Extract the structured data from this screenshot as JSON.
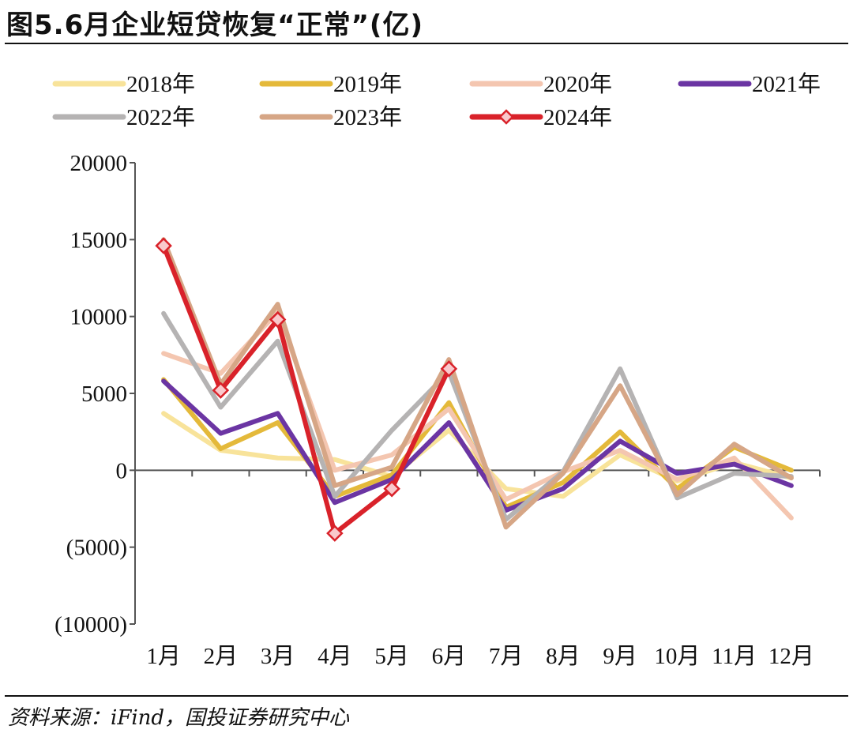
{
  "title": "图5.6月企业短贷恢复“正常”(亿)",
  "source": "资料来源：iFind，国投证券研究中心",
  "chart_data": {
    "type": "line",
    "categories": [
      "1月",
      "2月",
      "3月",
      "4月",
      "5月",
      "6月",
      "7月",
      "8月",
      "9月",
      "10月",
      "11月",
      "12月"
    ],
    "y_tick_labels": [
      "20000",
      "15000",
      "10000",
      "5000",
      "0",
      "(5000)",
      "(10000)"
    ],
    "y_ticks": [
      20000,
      15000,
      10000,
      5000,
      0,
      -5000,
      -10000
    ],
    "ylim": [
      -10000,
      20000
    ],
    "negative_tick_color": "#c00000",
    "legend_position": "top",
    "series": [
      {
        "name": "2018年",
        "color": "#f8e39a",
        "values": [
          3700,
          1300,
          800,
          700,
          -400,
          2600,
          -1200,
          -1700,
          1000,
          -700,
          500,
          -500
        ]
      },
      {
        "name": "2019年",
        "color": "#e4b93a",
        "values": [
          5900,
          1400,
          3100,
          -1700,
          -300,
          4400,
          -2400,
          -800,
          2500,
          -1200,
          1500,
          0
        ]
      },
      {
        "name": "2020年",
        "color": "#f4c6b0",
        "values": [
          7600,
          6300,
          10300,
          0,
          1000,
          4000,
          -1900,
          -100,
          1300,
          -600,
          800,
          -3100
        ]
      },
      {
        "name": "2021年",
        "color": "#6b35a3",
        "values": [
          5800,
          2400,
          3700,
          -2100,
          -600,
          3100,
          -2600,
          -1200,
          1900,
          -200,
          400,
          -1000
        ]
      },
      {
        "name": "2022年",
        "color": "#b5b3b3",
        "values": [
          10200,
          4100,
          8400,
          -1700,
          2600,
          6400,
          -3200,
          -100,
          6600,
          -1800,
          -200,
          -400
        ]
      },
      {
        "name": "2023年",
        "color": "#d6a686",
        "values": [
          15000,
          5600,
          10800,
          -1000,
          200,
          7200,
          -3700,
          -200,
          5500,
          -1600,
          1700,
          -500
        ]
      },
      {
        "name": "2024年",
        "color": "#d9222a",
        "values": [
          14600,
          5200,
          9800,
          -4100,
          -1200,
          6600,
          null,
          null,
          null,
          null,
          null,
          null
        ],
        "marker": "diamond"
      }
    ]
  }
}
